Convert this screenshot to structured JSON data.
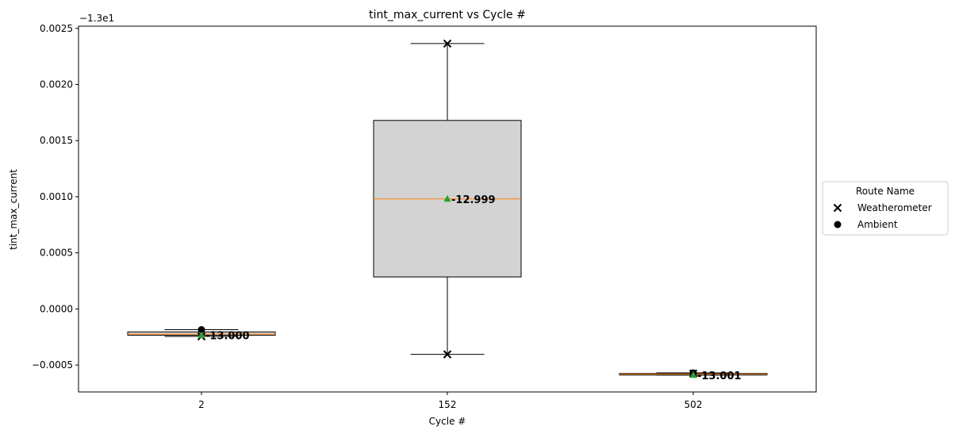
{
  "chart_data": {
    "type": "box",
    "title": "tint_max_current vs Cycle #",
    "xlabel": "Cycle #",
    "ylabel": "tint_max_current",
    "y_offset_label": "−1.3e1",
    "ylim": [
      -0.00074,
      0.00252
    ],
    "yticks": [
      {
        "value": -0.0005,
        "label": "−0.0005"
      },
      {
        "value": 0.0,
        "label": "0.0000"
      },
      {
        "value": 0.0005,
        "label": "0.0005"
      },
      {
        "value": 0.001,
        "label": "0.0010"
      },
      {
        "value": 0.0015,
        "label": "0.0015"
      },
      {
        "value": 0.002,
        "label": "0.0020"
      },
      {
        "value": 0.0025,
        "label": "0.0025"
      }
    ],
    "categories": [
      "2",
      "152",
      "502"
    ],
    "boxes": [
      {
        "category": "2",
        "whisker_low": -0.000245,
        "q1": -0.000235,
        "median": -0.000225,
        "q3": -0.000205,
        "whisker_high": -0.000185,
        "mean": -0.000235,
        "mean_label": "-13.000"
      },
      {
        "category": "152",
        "whisker_low": -0.000405,
        "q1": 0.000285,
        "median": 0.00098,
        "q3": 0.00168,
        "whisker_high": 0.002365,
        "mean": 0.00098,
        "mean_label": "-12.999"
      },
      {
        "category": "502",
        "whisker_low": -0.00059,
        "q1": -0.000585,
        "median": -0.00058,
        "q3": -0.000575,
        "whisker_high": -0.00057,
        "mean": -0.00059,
        "mean_label": "-13.001"
      }
    ],
    "series": [
      {
        "name": "Weatherometer",
        "marker": "x",
        "points": [
          {
            "category": "2",
            "value": -0.000245
          },
          {
            "category": "152",
            "value": 0.002365
          },
          {
            "category": "152",
            "value": -0.000405
          },
          {
            "category": "502",
            "value": -0.000575
          }
        ]
      },
      {
        "name": "Ambient",
        "marker": "circle",
        "points": [
          {
            "category": "2",
            "value": -0.000185
          },
          {
            "category": "502",
            "value": -0.00057
          }
        ]
      }
    ],
    "legend": {
      "title": "Route Name",
      "placement": "right"
    },
    "colors": {
      "box_fill": "#d3d3d3",
      "median": "#ff7f0e",
      "mean": "#2ca02c",
      "marker": "#000000"
    },
    "grid": false
  }
}
